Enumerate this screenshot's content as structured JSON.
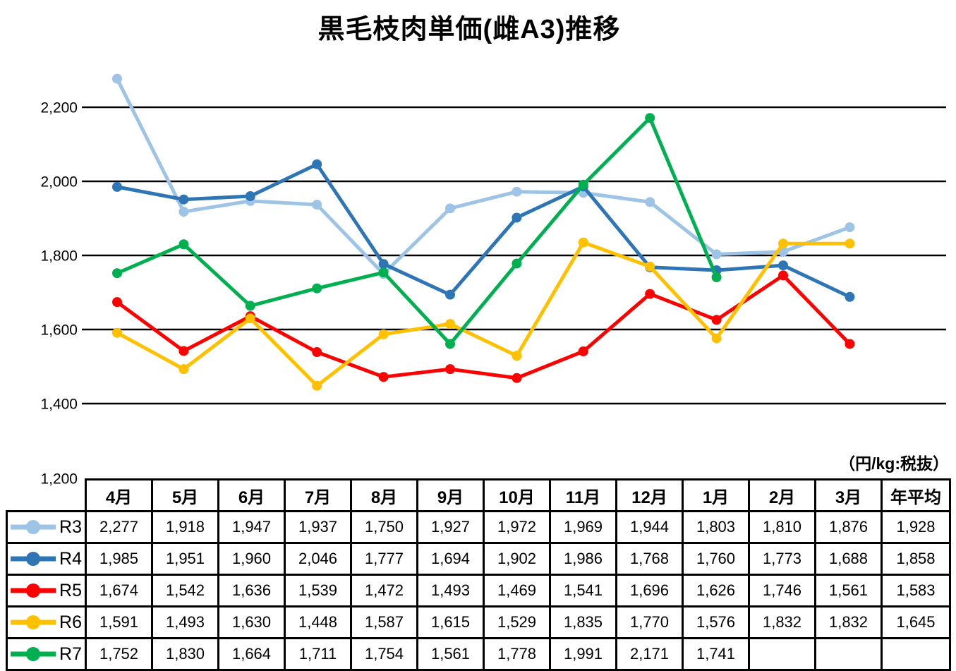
{
  "title": "黒毛枝肉単価(雌A3)推移",
  "unit_label": "（円/kg:税抜）",
  "chart_data": {
    "type": "line",
    "title": "黒毛枝肉単価(雌A3)推移",
    "unit": "円/kg (税抜)",
    "categories": [
      "4月",
      "5月",
      "6月",
      "7月",
      "8月",
      "9月",
      "10月",
      "11月",
      "12月",
      "1月",
      "2月",
      "3月"
    ],
    "series": [
      {
        "name": "R3",
        "color": "#9DC3E6",
        "values": [
          2277,
          1918,
          1947,
          1937,
          1750,
          1927,
          1972,
          1969,
          1944,
          1803,
          1810,
          1876
        ],
        "annual_average": 1928
      },
      {
        "name": "R4",
        "color": "#2E75B6",
        "values": [
          1985,
          1951,
          1960,
          2046,
          1777,
          1694,
          1902,
          1986,
          1768,
          1760,
          1773,
          1688
        ],
        "annual_average": 1858
      },
      {
        "name": "R5",
        "color": "#FF0000",
        "values": [
          1674,
          1542,
          1636,
          1539,
          1472,
          1493,
          1469,
          1541,
          1696,
          1626,
          1746,
          1561
        ],
        "annual_average": 1583
      },
      {
        "name": "R6",
        "color": "#FFC000",
        "values": [
          1591,
          1493,
          1630,
          1448,
          1587,
          1615,
          1529,
          1835,
          1770,
          1576,
          1832,
          1832
        ],
        "annual_average": 1645
      },
      {
        "name": "R7",
        "color": "#00B050",
        "values": [
          1752,
          1830,
          1664,
          1711,
          1754,
          1561,
          1778,
          1991,
          2171,
          1741,
          null,
          null
        ],
        "annual_average": null
      }
    ],
    "y_axis": {
      "min": 1200,
      "max": 2280,
      "ticks": [
        {
          "value": 2200,
          "label": "2,200"
        },
        {
          "value": 2000,
          "label": "2,000"
        },
        {
          "value": 1800,
          "label": "1,800"
        },
        {
          "value": 1600,
          "label": "1,600"
        },
        {
          "value": 1400,
          "label": "1,400"
        },
        {
          "value": 1200,
          "label": "1,200"
        }
      ]
    },
    "grid": true,
    "legend_position": "table-row-headers"
  },
  "table": {
    "columns": [
      "4月",
      "5月",
      "6月",
      "7月",
      "8月",
      "9月",
      "10月",
      "11月",
      "12月",
      "1月",
      "2月",
      "3月",
      "年平均"
    ],
    "rows": [
      {
        "label": "R3",
        "color": "#9DC3E6",
        "cells": [
          "2,277",
          "1,918",
          "1,947",
          "1,937",
          "1,750",
          "1,927",
          "1,972",
          "1,969",
          "1,944",
          "1,803",
          "1,810",
          "1,876",
          "1,928"
        ]
      },
      {
        "label": "R4",
        "color": "#2E75B6",
        "cells": [
          "1,985",
          "1,951",
          "1,960",
          "2,046",
          "1,777",
          "1,694",
          "1,902",
          "1,986",
          "1,768",
          "1,760",
          "1,773",
          "1,688",
          "1,858"
        ]
      },
      {
        "label": "R5",
        "color": "#FF0000",
        "cells": [
          "1,674",
          "1,542",
          "1,636",
          "1,539",
          "1,472",
          "1,493",
          "1,469",
          "1,541",
          "1,696",
          "1,626",
          "1,746",
          "1,561",
          "1,583"
        ]
      },
      {
        "label": "R6",
        "color": "#FFC000",
        "cells": [
          "1,591",
          "1,493",
          "1,630",
          "1,448",
          "1,587",
          "1,615",
          "1,529",
          "1,835",
          "1,770",
          "1,576",
          "1,832",
          "1,832",
          "1,645"
        ]
      },
      {
        "label": "R7",
        "color": "#00B050",
        "cells": [
          "1,752",
          "1,830",
          "1,664",
          "1,711",
          "1,754",
          "1,561",
          "1,778",
          "1,991",
          "2,171",
          "1,741",
          "",
          "",
          ""
        ]
      }
    ]
  }
}
